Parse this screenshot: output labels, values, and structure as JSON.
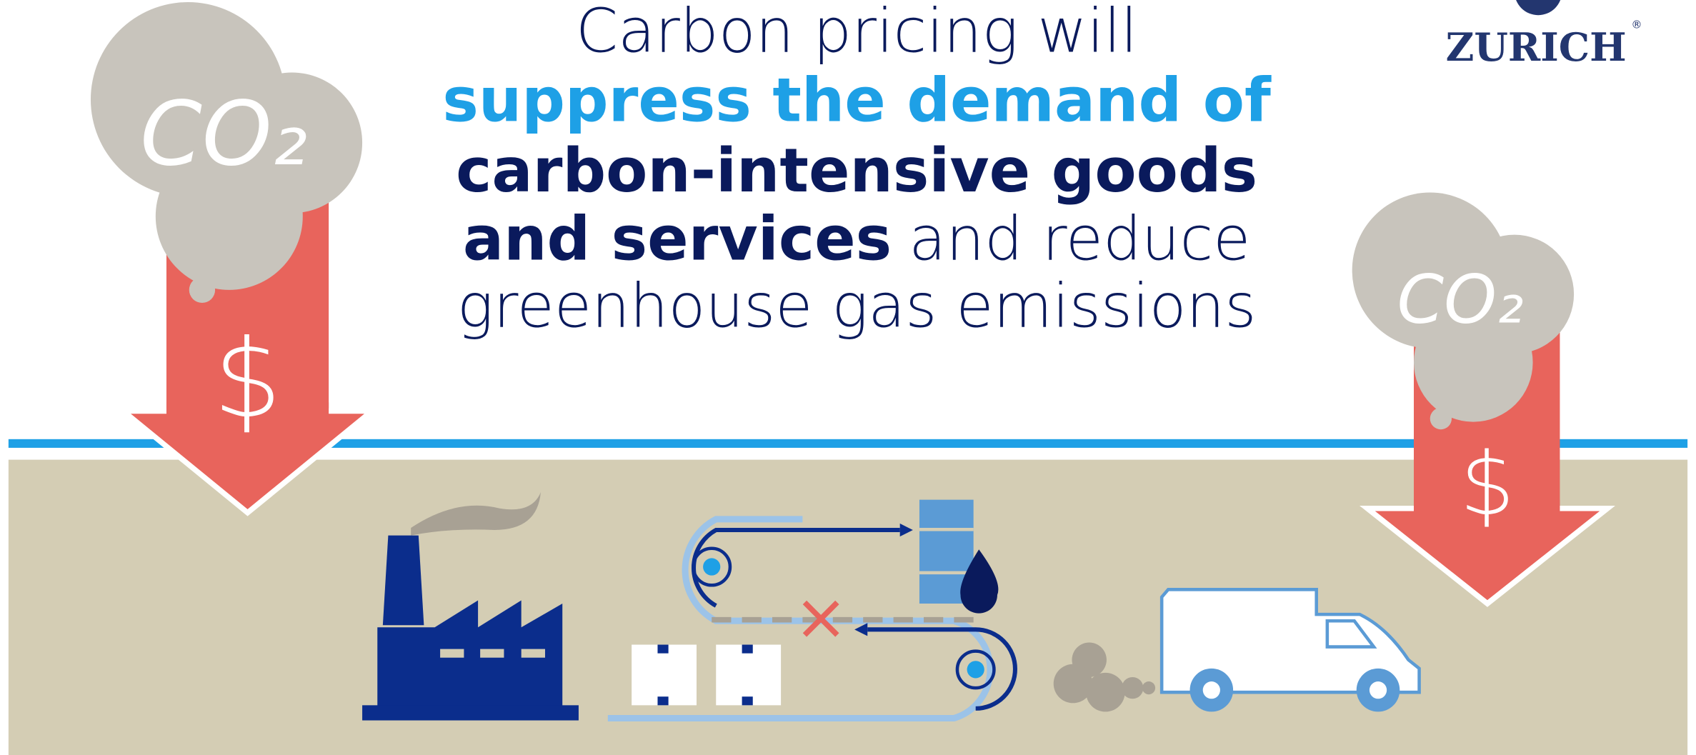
{
  "headline": {
    "line1": "Carbon pricing will",
    "line2": "suppress the demand of",
    "line3": "carbon-intensive goods",
    "line4_bold": "and services",
    "line4_regular": "and reduce",
    "line5": "greenhouse gas emissions"
  },
  "logo": {
    "name": "ZURICH",
    "mark": "®"
  },
  "left_cloud": {
    "label": "CO₂",
    "symbol": "$"
  },
  "right_cloud": {
    "label": "CO₂",
    "symbol": "$"
  }
}
